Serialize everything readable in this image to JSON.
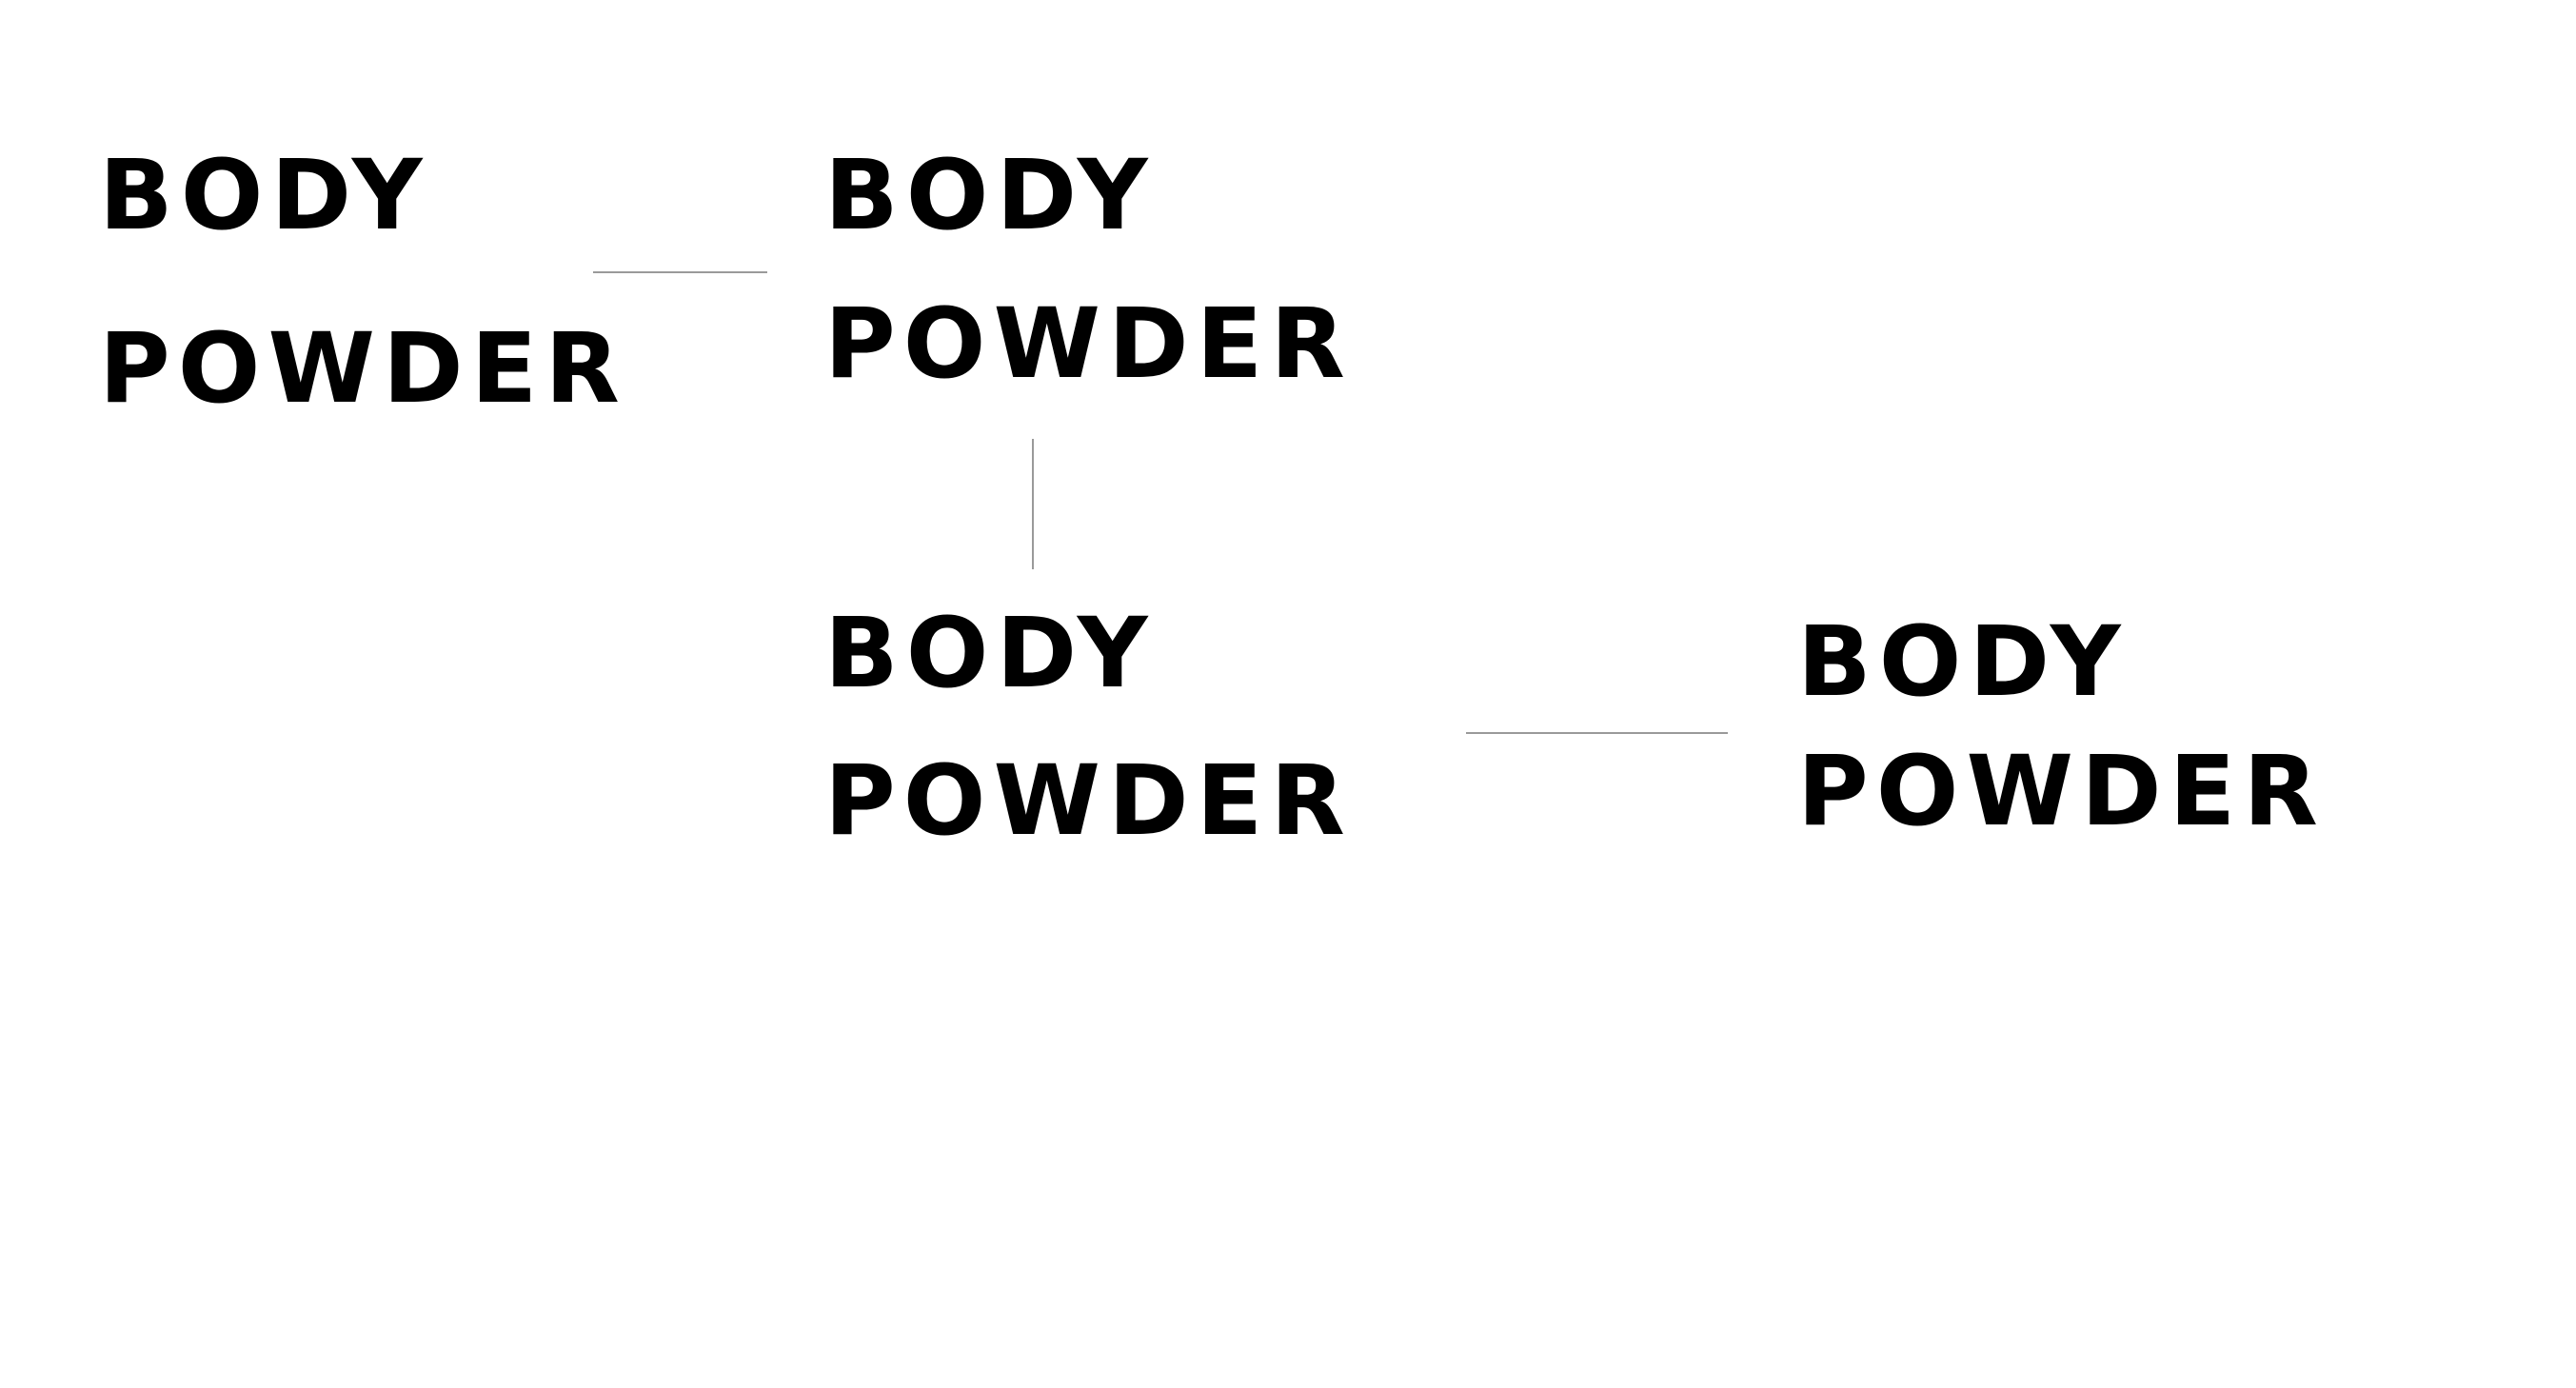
{
  "lockups": [
    {
      "line1": "BODY",
      "line2": "POWDER"
    },
    {
      "line1": "BODY",
      "line2": "POWDER"
    },
    {
      "line1": "BODY",
      "line2": "POWDER"
    },
    {
      "line1": "BODY",
      "line2": "POWDER"
    }
  ],
  "colors": {
    "text": "#000000",
    "connector": "#9a9a9a",
    "background": "#ffffff"
  }
}
